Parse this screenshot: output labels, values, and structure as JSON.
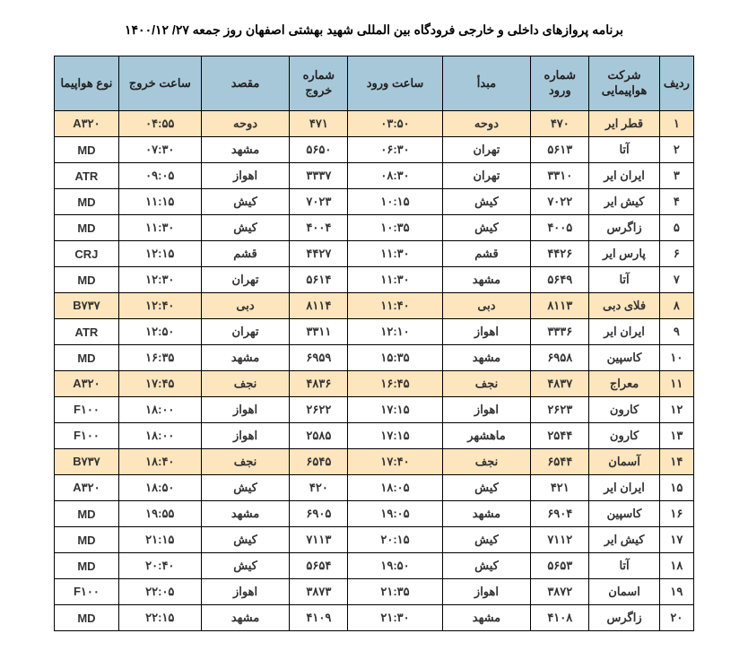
{
  "title": "برنامه پروازهای داخلی و خارجی فرودگاه بین المللی شهید بهشتی اصفهان روز جمعه ۲۷/ ۱۴۰۰/۱۲",
  "columns": {
    "row": "ردیف",
    "airline": "شرکت هواپیمایی",
    "in_no": "شماره ورود",
    "origin": "مبدأ",
    "in_time": "ساعت ورود",
    "out_no": "شماره خروج",
    "dest": "مقصد",
    "out_time": "ساعت خروج",
    "aircraft": "نوع هواپیما"
  },
  "header_bg": "#a7c8d9",
  "highlight_bg": "#fde5bd",
  "border_color": "#000000",
  "text_color": "#333333",
  "rows": [
    {
      "n": "۱",
      "airline": "قطر ایر",
      "in_no": "۴۷۰",
      "origin": "دوحه",
      "in_time": "۰۳:۵۰",
      "out_no": "۴۷۱",
      "dest": "دوحه",
      "out_time": "۰۴:۵۵",
      "ac": "A۳۲۰",
      "hl": true
    },
    {
      "n": "۲",
      "airline": "آتا",
      "in_no": "۵۶۱۳",
      "origin": "تهران",
      "in_time": "۰۶:۳۰",
      "out_no": "۵۶۵۰",
      "dest": "مشهد",
      "out_time": "۰۷:۳۰",
      "ac": "MD",
      "hl": false
    },
    {
      "n": "۳",
      "airline": "ایران ایر",
      "in_no": "۳۳۱۰",
      "origin": "تهران",
      "in_time": "۰۸:۳۰",
      "out_no": "۳۳۳۷",
      "dest": "اهواز",
      "out_time": "۰۹:۰۵",
      "ac": "ATR",
      "hl": false
    },
    {
      "n": "۴",
      "airline": "کیش ایر",
      "in_no": "۷۰۲۲",
      "origin": "کیش",
      "in_time": "۱۰:۱۵",
      "out_no": "۷۰۲۳",
      "dest": "کیش",
      "out_time": "۱۱:۱۵",
      "ac": "MD",
      "hl": false
    },
    {
      "n": "۵",
      "airline": "زاگرس",
      "in_no": "۴۰۰۵",
      "origin": "کیش",
      "in_time": "۱۰:۳۵",
      "out_no": "۴۰۰۴",
      "dest": "کیش",
      "out_time": "۱۱:۳۰",
      "ac": "MD",
      "hl": false
    },
    {
      "n": "۶",
      "airline": "پارس ایر",
      "in_no": "۴۴۲۶",
      "origin": "قشم",
      "in_time": "۱۱:۳۰",
      "out_no": "۴۴۲۷",
      "dest": "قشم",
      "out_time": "۱۲:۱۵",
      "ac": "CRJ",
      "hl": false
    },
    {
      "n": "۷",
      "airline": "آتا",
      "in_no": "۵۶۴۹",
      "origin": "مشهد",
      "in_time": "۱۱:۳۰",
      "out_no": "۵۶۱۴",
      "dest": "تهران",
      "out_time": "۱۲:۳۰",
      "ac": "MD",
      "hl": false
    },
    {
      "n": "۸",
      "airline": "فلای دبی",
      "in_no": "۸۱۱۳",
      "origin": "دبی",
      "in_time": "۱۱:۴۰",
      "out_no": "۸۱۱۴",
      "dest": "دبی",
      "out_time": "۱۲:۴۰",
      "ac": "B۷۳۷",
      "hl": true
    },
    {
      "n": "۹",
      "airline": "ایران ایر",
      "in_no": "۳۳۳۶",
      "origin": "اهواز",
      "in_time": "۱۲:۱۰",
      "out_no": "۳۳۱۱",
      "dest": "تهران",
      "out_time": "۱۲:۵۰",
      "ac": "ATR",
      "hl": false
    },
    {
      "n": "۱۰",
      "airline": "کاسپین",
      "in_no": "۶۹۵۸",
      "origin": "مشهد",
      "in_time": "۱۵:۳۵",
      "out_no": "۶۹۵۹",
      "dest": "مشهد",
      "out_time": "۱۶:۳۵",
      "ac": "MD",
      "hl": false
    },
    {
      "n": "۱۱",
      "airline": "معراج",
      "in_no": "۴۸۳۷",
      "origin": "نجف",
      "in_time": "۱۶:۴۵",
      "out_no": "۴۸۳۶",
      "dest": "نجف",
      "out_time": "۱۷:۴۵",
      "ac": "A۳۲۰",
      "hl": true
    },
    {
      "n": "۱۲",
      "airline": "کارون",
      "in_no": "۲۶۲۳",
      "origin": "اهواز",
      "in_time": "۱۷:۱۵",
      "out_no": "۲۶۲۲",
      "dest": "اهواز",
      "out_time": "۱۸:۰۰",
      "ac": "F۱۰۰",
      "hl": false
    },
    {
      "n": "۱۳",
      "airline": "کارون",
      "in_no": "۲۵۴۴",
      "origin": "ماهشهر",
      "in_time": "۱۷:۱۵",
      "out_no": "۲۵۸۵",
      "dest": "اهواز",
      "out_time": "۱۸:۰۰",
      "ac": "F۱۰۰",
      "hl": false
    },
    {
      "n": "۱۴",
      "airline": "آسمان",
      "in_no": "۶۵۴۴",
      "origin": "نجف",
      "in_time": "۱۷:۴۰",
      "out_no": "۶۵۴۵",
      "dest": "نجف",
      "out_time": "۱۸:۴۰",
      "ac": "B۷۳۷",
      "hl": true
    },
    {
      "n": "۱۵",
      "airline": "ایران ایر",
      "in_no": "۴۲۱",
      "origin": "کیش",
      "in_time": "۱۸:۰۵",
      "out_no": "۴۲۰",
      "dest": "کیش",
      "out_time": "۱۸:۵۰",
      "ac": "A۳۲۰",
      "hl": false
    },
    {
      "n": "۱۶",
      "airline": "کاسپین",
      "in_no": "۶۹۰۴",
      "origin": "مشهد",
      "in_time": "۱۹:۰۵",
      "out_no": "۶۹۰۵",
      "dest": "مشهد",
      "out_time": "۱۹:۵۵",
      "ac": "MD",
      "hl": false
    },
    {
      "n": "۱۷",
      "airline": "کیش ایر",
      "in_no": "۷۱۱۲",
      "origin": "کیش",
      "in_time": "۲۰:۱۵",
      "out_no": "۷۱۱۳",
      "dest": "کیش",
      "out_time": "۲۱:۱۵",
      "ac": "MD",
      "hl": false
    },
    {
      "n": "۱۸",
      "airline": "آتا",
      "in_no": "۵۶۵۳",
      "origin": "کیش",
      "in_time": "۱۹:۵۰",
      "out_no": "۵۶۵۴",
      "dest": "کیش",
      "out_time": "۲۰:۴۰",
      "ac": "MD",
      "hl": false
    },
    {
      "n": "۱۹",
      "airline": "اسمان",
      "in_no": "۳۸۷۲",
      "origin": "اهواز",
      "in_time": "۲۱:۳۵",
      "out_no": "۳۸۷۳",
      "dest": "اهواز",
      "out_time": "۲۲:۰۵",
      "ac": "F۱۰۰",
      "hl": false
    },
    {
      "n": "۲۰",
      "airline": "زاگرس",
      "in_no": "۴۱۰۸",
      "origin": "مشهد",
      "in_time": "۲۱:۳۰",
      "out_no": "۴۱۰۹",
      "dest": "مشهد",
      "out_time": "۲۲:۱۵",
      "ac": "MD",
      "hl": false
    }
  ]
}
